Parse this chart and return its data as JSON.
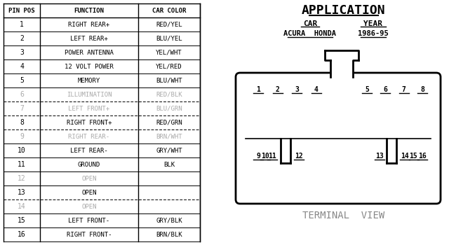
{
  "table_headers": [
    "PIN POS",
    "FUNCTION",
    "CAR COLOR"
  ],
  "rows": [
    {
      "pin": "1",
      "function": "RIGHT REAR+",
      "color": "RED/YEL",
      "dim": false,
      "dashed": false
    },
    {
      "pin": "2",
      "function": "LEFT REAR+",
      "color": "BLU/YEL",
      "dim": false,
      "dashed": false
    },
    {
      "pin": "3",
      "function": "POWER ANTENNA",
      "color": "YEL/WHT",
      "dim": false,
      "dashed": false
    },
    {
      "pin": "4",
      "function": "12 VOLT POWER",
      "color": "YEL/RED",
      "dim": false,
      "dashed": false
    },
    {
      "pin": "5",
      "function": "MEMORY",
      "color": "BLU/WHT",
      "dim": false,
      "dashed": false
    },
    {
      "pin": "6",
      "function": "ILLUMINATION",
      "color": "RED/BLK",
      "dim": true,
      "dashed": true
    },
    {
      "pin": "7",
      "function": "LEFT FRONT+",
      "color": "BLU/GRN",
      "dim": true,
      "dashed": true
    },
    {
      "pin": "8",
      "function": "RIGHT FRONT+",
      "color": "RED/GRN",
      "dim": false,
      "dashed": true
    },
    {
      "pin": "9",
      "function": "RIGHT REAR-",
      "color": "BRN/WHT",
      "dim": true,
      "dashed": false
    },
    {
      "pin": "10",
      "function": "LEFT REAR-",
      "color": "GRY/WHT",
      "dim": false,
      "dashed": false
    },
    {
      "pin": "11",
      "function": "GROUND",
      "color": "BLK",
      "dim": false,
      "dashed": false
    },
    {
      "pin": "12",
      "function": "OPEN",
      "color": "",
      "dim": true,
      "dashed": false
    },
    {
      "pin": "13",
      "function": "OPEN",
      "color": "",
      "dim": false,
      "dashed": true
    },
    {
      "pin": "14",
      "function": "OPEN",
      "color": "",
      "dim": true,
      "dashed": false
    },
    {
      "pin": "15",
      "function": "LEFT FRONT-",
      "color": "GRY/BLK",
      "dim": false,
      "dashed": false
    },
    {
      "pin": "16",
      "function": "RIGHT FRONT-",
      "color": "BRN/BLK",
      "dim": false,
      "dashed": false
    }
  ],
  "app_title": "APPLICATION",
  "car_label": "CAR",
  "year_label": "YEAR",
  "car_value": "ACURA  HONDA",
  "year_value": "1986-95",
  "terminal_label": "TERMINAL  VIEW",
  "top_pins": [
    "1",
    "2",
    "3",
    "4",
    "5",
    "6",
    "7",
    "8"
  ],
  "bottom_pins": [
    "9",
    "10",
    "11",
    "12",
    "13",
    "14",
    "15",
    "16"
  ],
  "bg_color": "#ffffff",
  "text_color": "#000000",
  "dim_color": "#aaaaaa",
  "connector_color": "#000000"
}
